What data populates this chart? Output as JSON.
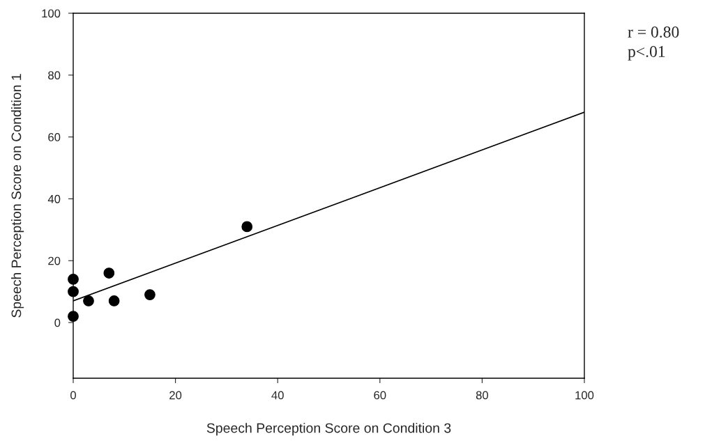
{
  "chart_data": {
    "type": "scatter",
    "xlabel": "Speech Perception Score on Condition 3",
    "ylabel": "Speech Perception Score on Condition 1",
    "annotations": [
      "r = 0.80",
      "p<.01"
    ],
    "series": [
      {
        "color": "#000000",
        "marker": "circle",
        "x": [
          0,
          0,
          0,
          3,
          8,
          7,
          15,
          34
        ],
        "values": [
          14,
          10,
          2,
          7,
          7,
          16,
          9,
          31
        ]
      },
      {
        "type": "line",
        "color": "#000000",
        "x": [
          0,
          100
        ],
        "values": [
          7,
          68
        ]
      }
    ],
    "xlim": [
      0,
      100
    ],
    "ylim": [
      -18,
      100
    ],
    "xticks": [
      0,
      20,
      40,
      60,
      80,
      100
    ],
    "yticks": [
      0,
      20,
      40,
      60,
      80,
      100
    ],
    "grid": false,
    "legend": false
  }
}
